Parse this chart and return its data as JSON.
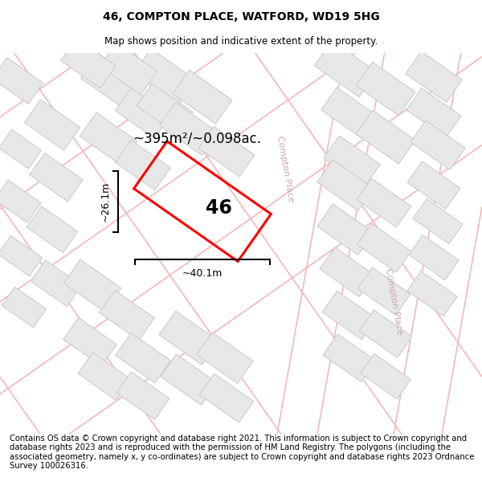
{
  "title": "46, COMPTON PLACE, WATFORD, WD19 5HG",
  "subtitle": "Map shows position and indicative extent of the property.",
  "footer": "Contains OS data © Crown copyright and database right 2021. This information is subject to Crown copyright and database rights 2023 and is reproduced with the permission of HM Land Registry. The polygons (including the associated geometry, namely x, y co-ordinates) are subject to Crown copyright and database rights 2023 Ordnance Survey 100026316.",
  "area_label": "~395m²/~0.098ac.",
  "width_label": "~40.1m",
  "height_label": "~26.1m",
  "number_label": "46",
  "bg_color": "#ffffff",
  "map_bg": "#ffffff",
  "road_line_color": "#f5b8b8",
  "building_color": "#e8e8e8",
  "building_stroke": "#c8c8c8",
  "road_label_color": "#c8a8a8",
  "plot_color": "#ff0000",
  "title_fontsize": 10,
  "subtitle_fontsize": 8.5,
  "footer_fontsize": 7.2
}
